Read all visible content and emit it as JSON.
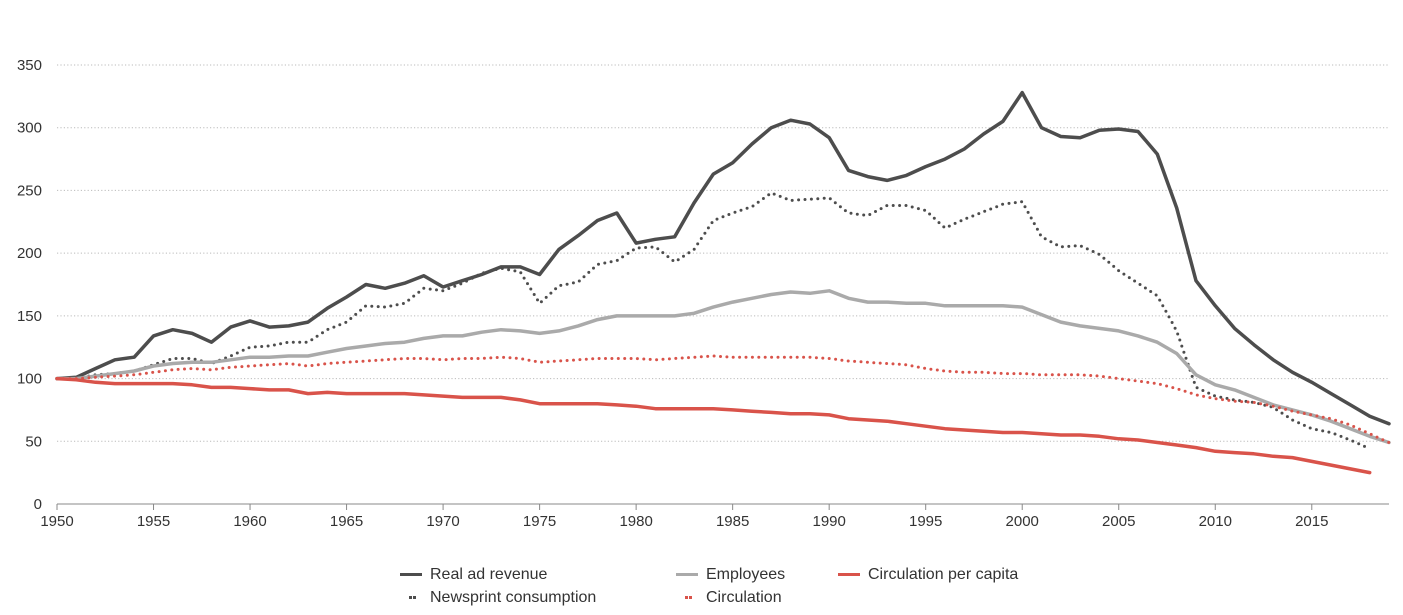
{
  "chart_data": {
    "type": "line",
    "title": "",
    "xlabel": "",
    "ylabel": "",
    "xlim": [
      1950,
      2019
    ],
    "ylim": [
      0,
      350
    ],
    "x_ticks": [
      "1950",
      "1955",
      "1960",
      "1965",
      "1970",
      "1975",
      "1980",
      "1985",
      "1990",
      "1995",
      "2000",
      "2005",
      "2010",
      "2015"
    ],
    "y_ticks": [
      "0",
      "50",
      "100",
      "150",
      "200",
      "250",
      "300",
      "350"
    ],
    "grid": "horizontal dotted",
    "legend_position": "bottom",
    "series": [
      {
        "name": "Real ad revenue",
        "style": "solid",
        "color": "#4d4d4d",
        "x": [
          1950,
          1951,
          1952,
          1953,
          1954,
          1955,
          1956,
          1957,
          1958,
          1959,
          1960,
          1961,
          1962,
          1963,
          1964,
          1965,
          1966,
          1967,
          1968,
          1969,
          1970,
          1971,
          1972,
          1973,
          1974,
          1975,
          1976,
          1977,
          1978,
          1979,
          1980,
          1981,
          1982,
          1983,
          1984,
          1985,
          1986,
          1987,
          1988,
          1989,
          1990,
          1991,
          1992,
          1993,
          1994,
          1995,
          1996,
          1997,
          1998,
          1999,
          2000,
          2001,
          2002,
          2003,
          2004,
          2005,
          2006,
          2007,
          2008,
          2009,
          2010,
          2011,
          2012,
          2013,
          2014,
          2015,
          2016,
          2017,
          2018,
          2019
        ],
        "y": [
          100,
          101,
          108,
          115,
          117,
          134,
          139,
          136,
          129,
          141,
          146,
          141,
          142,
          145,
          156,
          165,
          175,
          172,
          176,
          182,
          173,
          178,
          183,
          189,
          189,
          183,
          203,
          214,
          226,
          232,
          208,
          211,
          213,
          240,
          263,
          272,
          287,
          300,
          306,
          303,
          292,
          266,
          261,
          258,
          262,
          269,
          275,
          283,
          295,
          305,
          328,
          300,
          293,
          292,
          298,
          299,
          297,
          279,
          236,
          178,
          158,
          140,
          127,
          115,
          105,
          97,
          88,
          79,
          70,
          64
        ]
      },
      {
        "name": "Newsprint consumption",
        "style": "dotted",
        "color": "#4d4d4d",
        "x": [
          1950,
          1951,
          1952,
          1953,
          1954,
          1955,
          1956,
          1957,
          1958,
          1959,
          1960,
          1961,
          1962,
          1963,
          1964,
          1965,
          1966,
          1967,
          1968,
          1969,
          1970,
          1971,
          1972,
          1973,
          1974,
          1975,
          1976,
          1977,
          1978,
          1979,
          1980,
          1981,
          1982,
          1983,
          1984,
          1985,
          1986,
          1987,
          1988,
          1989,
          1990,
          1991,
          1992,
          1993,
          1994,
          1995,
          1996,
          1997,
          1998,
          1999,
          2000,
          2001,
          2002,
          2003,
          2004,
          2005,
          2006,
          2007,
          2008,
          2009,
          2010,
          2011,
          2012,
          2013,
          2014,
          2015,
          2016,
          2017,
          2018
        ],
        "y": [
          100,
          100,
          103,
          104,
          106,
          111,
          116,
          116,
          112,
          118,
          125,
          126,
          129,
          129,
          139,
          145,
          158,
          157,
          160,
          172,
          170,
          176,
          184,
          188,
          185,
          160,
          174,
          177,
          191,
          194,
          204,
          205,
          193,
          203,
          226,
          232,
          237,
          248,
          242,
          243,
          244,
          232,
          230,
          238,
          238,
          234,
          220,
          227,
          233,
          239,
          241,
          213,
          205,
          206,
          199,
          186,
          176,
          166,
          138,
          93,
          86,
          83,
          81,
          77,
          67,
          60,
          57,
          51,
          44
        ]
      },
      {
        "name": "Employees",
        "style": "solid",
        "color": "#aaaaaa",
        "x": [
          1950,
          1951,
          1952,
          1953,
          1954,
          1955,
          1956,
          1957,
          1958,
          1959,
          1960,
          1961,
          1962,
          1963,
          1964,
          1965,
          1966,
          1967,
          1968,
          1969,
          1970,
          1971,
          1972,
          1973,
          1974,
          1975,
          1976,
          1977,
          1978,
          1979,
          1980,
          1981,
          1982,
          1983,
          1984,
          1985,
          1986,
          1987,
          1988,
          1989,
          1990,
          1991,
          1992,
          1993,
          1994,
          1995,
          1996,
          1997,
          1998,
          1999,
          2000,
          2001,
          2002,
          2003,
          2004,
          2005,
          2006,
          2007,
          2008,
          2009,
          2010,
          2011,
          2012,
          2013,
          2014,
          2015,
          2016,
          2017,
          2018,
          2019
        ],
        "y": [
          100,
          100,
          102,
          104,
          106,
          110,
          112,
          113,
          113,
          115,
          117,
          117,
          118,
          118,
          121,
          124,
          126,
          128,
          129,
          132,
          134,
          134,
          137,
          139,
          138,
          136,
          138,
          142,
          147,
          150,
          150,
          150,
          150,
          152,
          157,
          161,
          164,
          167,
          169,
          168,
          170,
          164,
          161,
          161,
          160,
          160,
          158,
          158,
          158,
          158,
          157,
          151,
          145,
          142,
          140,
          138,
          134,
          129,
          120,
          103,
          95,
          91,
          85,
          79,
          75,
          71,
          66,
          60,
          54,
          49
        ]
      },
      {
        "name": "Circulation",
        "style": "dotted",
        "color": "#d9534a",
        "x": [
          1950,
          1951,
          1952,
          1953,
          1954,
          1955,
          1956,
          1957,
          1958,
          1959,
          1960,
          1961,
          1962,
          1963,
          1964,
          1965,
          1966,
          1967,
          1968,
          1969,
          1970,
          1971,
          1972,
          1973,
          1974,
          1975,
          1976,
          1977,
          1978,
          1979,
          1980,
          1981,
          1982,
          1983,
          1984,
          1985,
          1986,
          1987,
          1988,
          1989,
          1990,
          1991,
          1992,
          1993,
          1994,
          1995,
          1996,
          1997,
          1998,
          1999,
          2000,
          2001,
          2002,
          2003,
          2004,
          2005,
          2006,
          2007,
          2008,
          2009,
          2010,
          2011,
          2012,
          2013,
          2014,
          2015,
          2016,
          2017,
          2018,
          2019
        ],
        "y": [
          100,
          100,
          101,
          102,
          103,
          105,
          107,
          108,
          107,
          109,
          110,
          111,
          112,
          110,
          112,
          113,
          114,
          115,
          116,
          116,
          115,
          116,
          116,
          117,
          116,
          113,
          114,
          115,
          116,
          116,
          116,
          115,
          116,
          117,
          118,
          117,
          117,
          117,
          117,
          117,
          116,
          114,
          113,
          112,
          111,
          108,
          106,
          105,
          105,
          104,
          104,
          103,
          103,
          103,
          102,
          100,
          98,
          96,
          92,
          87,
          84,
          82,
          81,
          78,
          74,
          71,
          68,
          63,
          56,
          49
        ]
      },
      {
        "name": "Circulation per capita",
        "style": "solid",
        "color": "#d9534a",
        "x": [
          1950,
          1951,
          1952,
          1953,
          1954,
          1955,
          1956,
          1957,
          1958,
          1959,
          1960,
          1961,
          1962,
          1963,
          1964,
          1965,
          1966,
          1967,
          1968,
          1969,
          1970,
          1971,
          1972,
          1973,
          1974,
          1975,
          1976,
          1977,
          1978,
          1979,
          1980,
          1981,
          1982,
          1983,
          1984,
          1985,
          1986,
          1987,
          1988,
          1989,
          1990,
          1991,
          1992,
          1993,
          1994,
          1995,
          1996,
          1997,
          1998,
          1999,
          2000,
          2001,
          2002,
          2003,
          2004,
          2005,
          2006,
          2007,
          2008,
          2009,
          2010,
          2011,
          2012,
          2013,
          2014,
          2015,
          2016,
          2017,
          2018
        ],
        "y": [
          100,
          99,
          97,
          96,
          96,
          96,
          96,
          95,
          93,
          93,
          92,
          91,
          91,
          88,
          89,
          88,
          88,
          88,
          88,
          87,
          86,
          85,
          85,
          85,
          83,
          80,
          80,
          80,
          80,
          79,
          78,
          76,
          76,
          76,
          76,
          75,
          74,
          73,
          72,
          72,
          71,
          68,
          67,
          66,
          64,
          62,
          60,
          59,
          58,
          57,
          57,
          56,
          55,
          55,
          54,
          52,
          51,
          49,
          47,
          45,
          42,
          41,
          40,
          38,
          37,
          34,
          31,
          28,
          25
        ]
      }
    ]
  }
}
